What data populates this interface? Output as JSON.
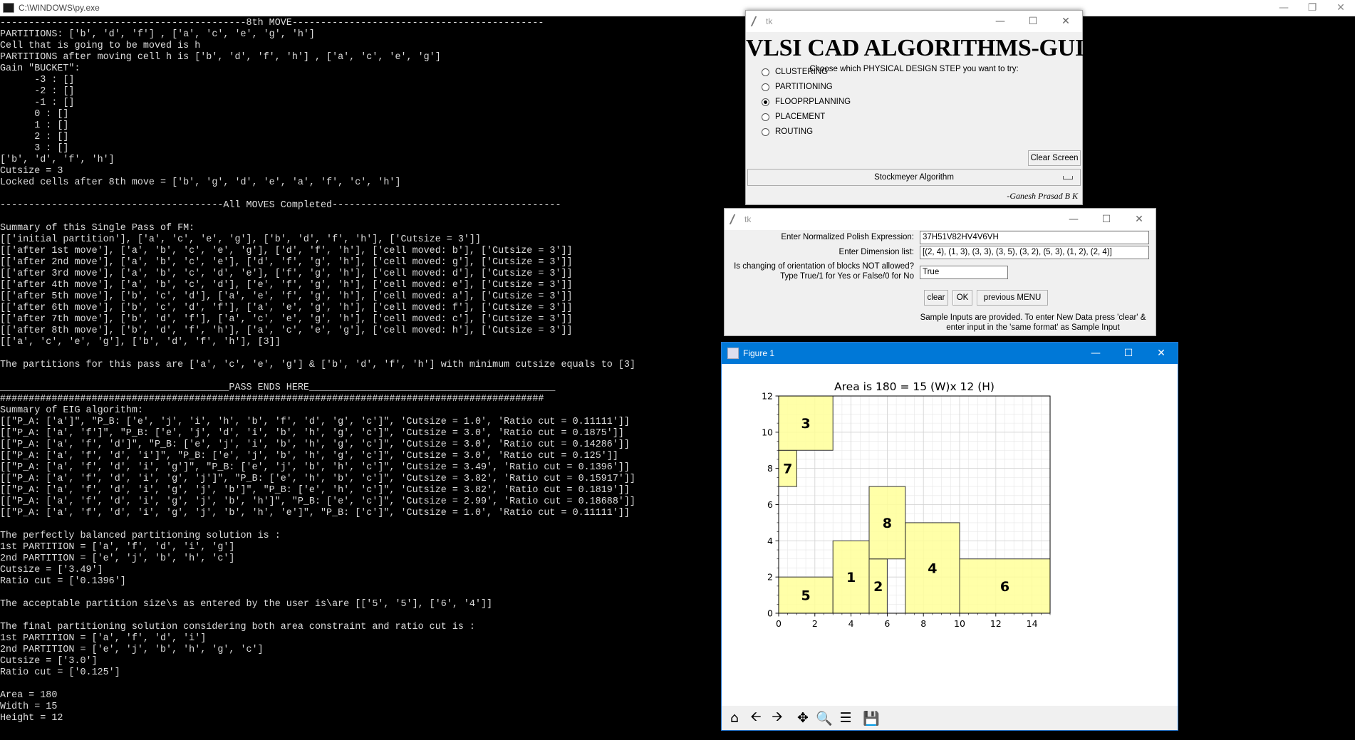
{
  "console": {
    "title": "C:\\WINDOWS\\py.exe",
    "lines": [
      "-------------------------------------------8th MOVE--------------------------------------------",
      "PARTITIONS: ['b', 'd', 'f'] , ['a', 'c', 'e', 'g', 'h']",
      "Cell that is going to be moved is h",
      "PARTITIONS after moving cell h is ['b', 'd', 'f', 'h'] , ['a', 'c', 'e', 'g']",
      "Gain \"BUCKET\":",
      "      -3 : []",
      "      -2 : []",
      "      -1 : []",
      "      0 : []",
      "      1 : []",
      "      2 : []",
      "      3 : []",
      "['b', 'd', 'f', 'h']",
      "Cutsize = 3",
      "Locked cells after 8th move = ['b', 'g', 'd', 'e', 'a', 'f', 'c', 'h']",
      "",
      "---------------------------------------All MOVES Completed----------------------------------------",
      "",
      "Summary of this Single Pass of FM:",
      "[['initial partition'], ['a', 'c', 'e', 'g'], ['b', 'd', 'f', 'h'], ['Cutsize = 3']]",
      "[['after 1st move'], ['a', 'b', 'c', 'e', 'g'], ['d', 'f', 'h'], ['cell moved: b'], ['Cutsize = 3']]",
      "[['after 2nd move'], ['a', 'b', 'c', 'e'], ['d', 'f', 'g', 'h'], ['cell moved: g'], ['Cutsize = 3']]",
      "[['after 3rd move'], ['a', 'b', 'c', 'd', 'e'], ['f', 'g', 'h'], ['cell moved: d'], ['Cutsize = 3']]",
      "[['after 4th move'], ['a', 'b', 'c', 'd'], ['e', 'f', 'g', 'h'], ['cell moved: e'], ['Cutsize = 3']]",
      "[['after 5th move'], ['b', 'c', 'd'], ['a', 'e', 'f', 'g', 'h'], ['cell moved: a'], ['Cutsize = 3']]",
      "[['after 6th move'], ['b', 'c', 'd', 'f'], ['a', 'e', 'g', 'h'], ['cell moved: f'], ['Cutsize = 3']]",
      "[['after 7th move'], ['b', 'd', 'f'], ['a', 'c', 'e', 'g', 'h'], ['cell moved: c'], ['Cutsize = 3']]",
      "[['after 8th move'], ['b', 'd', 'f', 'h'], ['a', 'c', 'e', 'g'], ['cell moved: h'], ['Cutsize = 3']]",
      "[['a', 'c', 'e', 'g'], ['b', 'd', 'f', 'h'], [3]]",
      "",
      "The partitions for this pass are ['a', 'c', 'e', 'g'] & ['b', 'd', 'f', 'h'] with minimum cutsize equals to [3]",
      "",
      "________________________________________PASS ENDS HERE___________________________________________",
      "###############################################################################################",
      "Summary of EIG algorithm:",
      "[[\"P_A: ['a']\", \"P_B: ['e', 'j', 'i', 'h', 'b', 'f', 'd', 'g', 'c']\", 'Cutsize = 1.0', 'Ratio cut = 0.11111']]",
      "[[\"P_A: ['a', 'f']\", \"P_B: ['e', 'j', 'd', 'i', 'b', 'h', 'g', 'c']\", 'Cutsize = 3.0', 'Ratio cut = 0.1875']]",
      "[[\"P_A: ['a', 'f', 'd']\", \"P_B: ['e', 'j', 'i', 'b', 'h', 'g', 'c']\", 'Cutsize = 3.0', 'Ratio cut = 0.14286']]",
      "[[\"P_A: ['a', 'f', 'd', 'i']\", \"P_B: ['e', 'j', 'b', 'h', 'g', 'c']\", 'Cutsize = 3.0', 'Ratio cut = 0.125']]",
      "[[\"P_A: ['a', 'f', 'd', 'i', 'g']\", \"P_B: ['e', 'j', 'b', 'h', 'c']\", 'Cutsize = 3.49', 'Ratio cut = 0.1396']]",
      "[[\"P_A: ['a', 'f', 'd', 'i', 'g', 'j']\", \"P_B: ['e', 'h', 'b', 'c']\", 'Cutsize = 3.82', 'Ratio cut = 0.15917']]",
      "[[\"P_A: ['a', 'f', 'd', 'i', 'g', 'j', 'b']\", \"P_B: ['e', 'h', 'c']\", 'Cutsize = 3.82', 'Ratio cut = 0.1819']]",
      "[[\"P_A: ['a', 'f', 'd', 'i', 'g', 'j', 'b', 'h']\", \"P_B: ['e', 'c']\", 'Cutsize = 2.99', 'Ratio cut = 0.18688']]",
      "[[\"P_A: ['a', 'f', 'd', 'i', 'g', 'j', 'b', 'h', 'e']\", \"P_B: ['c']\", 'Cutsize = 1.0', 'Ratio cut = 0.11111']]",
      "",
      "The perfectly balanced partitioning solution is :",
      "1st PARTITION = ['a', 'f', 'd', 'i', 'g']",
      "2nd PARTITION = ['e', 'j', 'b', 'h', 'c']",
      "Cutsize = ['3.49']",
      "Ratio cut = ['0.1396']",
      "",
      "The acceptable partition size\\s as entered by the user is\\are [['5', '5'], ['6', '4']]",
      "",
      "The final partitioning solution considering both area constraint and ratio cut is :",
      "1st PARTITION = ['a', 'f', 'd', 'i']",
      "2nd PARTITION = ['e', 'j', 'b', 'h', 'g', 'c']",
      "Cutsize = ['3.0']",
      "Ratio cut = ['0.125']",
      "",
      "Area = 180",
      "Width = 15",
      "Height = 12"
    ]
  },
  "menu_window": {
    "title": "tk",
    "heading": "VLSI CAD ALGORITHMS-GUI",
    "prompt": "Choose which PHYSICAL DESIGN STEP you want to try:",
    "options": [
      "CLUSTERING",
      "PARTITIONING",
      "FLOOPRPLANNING",
      "PLACEMENT",
      "ROUTING"
    ],
    "selected": "FLOOPRPLANNING",
    "clear_label": "Clear Screen",
    "algorithm_selected": "Stockmeyer Algorithm",
    "author": "-Ganesh Prasad B K"
  },
  "input_window": {
    "title": "tk",
    "polish_label": "Enter Normalized Polish Expression:",
    "polish_value": "37H51V82HV4V6VH",
    "dimension_label": "Enter Dimension list:",
    "dimension_value": "[(2, 4), (1, 3), (3, 3), (3, 5), (3, 2), (5, 3), (1, 2), (2, 4)]",
    "orientation_label_1": "Is changing of orientation of blocks NOT allowed?",
    "orientation_label_2": "Type True/1 for Yes or False/0 for No",
    "orientation_value": "True",
    "clear_label": "clear",
    "ok_label": "OK",
    "prev_label": "previous MENU",
    "note_line_1": "Sample Inputs are provided. To enter New Data press 'clear' &",
    "note_line_2": "enter input in the 'same format' as Sample Input"
  },
  "figure_window": {
    "title": "Figure 1",
    "chart_data": {
      "type": "floorplan",
      "title": "Area is 180 = 15 (W)x 12 (H)",
      "xlim": [
        0,
        15
      ],
      "ylim": [
        0,
        12
      ],
      "xticks": [
        0,
        2,
        4,
        6,
        8,
        10,
        12,
        14
      ],
      "yticks": [
        0,
        2,
        4,
        6,
        8,
        10,
        12
      ],
      "grid": true,
      "block_color": "#ffff99",
      "blocks": [
        {
          "label": "5",
          "x": 0,
          "y": 0,
          "w": 3,
          "h": 2
        },
        {
          "label": "1",
          "x": 3,
          "y": 0,
          "w": 2,
          "h": 4
        },
        {
          "label": "2",
          "x": 5,
          "y": 0,
          "w": 1,
          "h": 3
        },
        {
          "label": "8",
          "x": 5,
          "y": 3,
          "w": 2,
          "h": 4
        },
        {
          "label": "4",
          "x": 7,
          "y": 0,
          "w": 3,
          "h": 5
        },
        {
          "label": "6",
          "x": 10,
          "y": 0,
          "w": 5,
          "h": 3
        },
        {
          "label": "7",
          "x": 0,
          "y": 7,
          "w": 1,
          "h": 2
        },
        {
          "label": "3",
          "x": 0,
          "y": 9,
          "w": 3,
          "h": 3
        }
      ]
    },
    "toolbar": [
      "home-icon",
      "back-icon",
      "forward-icon",
      "pan-icon",
      "zoom-icon",
      "configure-icon",
      "save-icon"
    ]
  }
}
